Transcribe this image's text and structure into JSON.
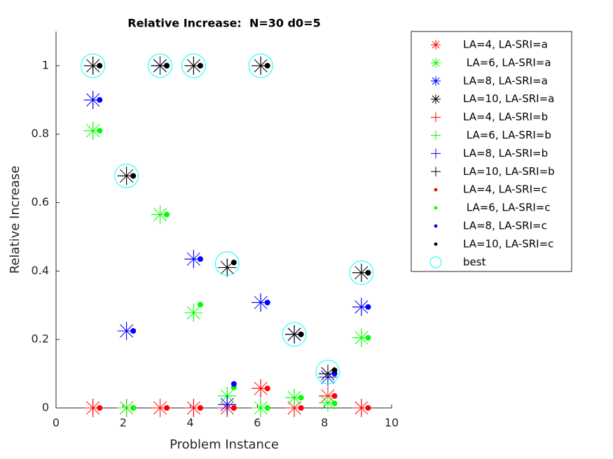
{
  "chart_data": {
    "type": "scatter",
    "title": "Relative Increase:  N=30 d0=5",
    "xlabel": "Problem Instance",
    "ylabel": "Relative Increase",
    "xlim": [
      0,
      10
    ],
    "ylim": [
      0,
      1.1
    ],
    "xticks": [
      0,
      2,
      4,
      6,
      8,
      10
    ],
    "yticks": [
      0,
      {
        "value": 0.2,
        "label": "0.2"
      },
      {
        "value": 0.4,
        "label": "0.4"
      },
      {
        "value": 0.6,
        "label": "0.6"
      },
      {
        "value": 0.8,
        "label": "0.8"
      },
      1
    ],
    "legend": "outside-right",
    "series": [
      {
        "name": "LA=4, LA-SRI=a",
        "color": "#ff0000",
        "marker": "*",
        "x": [
          1.1,
          2.1,
          3.1,
          4.1,
          5.1,
          6.1,
          7.1,
          8.1,
          9.1
        ],
        "values": [
          0,
          0,
          0,
          0,
          0,
          0.057,
          0,
          0.035,
          0
        ]
      },
      {
        "name": " LA=6, LA-SRI=a",
        "color": "#00ff00",
        "marker": "*",
        "x": [
          1.1,
          2.1,
          3.1,
          4.1,
          5.1,
          6.1,
          7.1,
          8.1,
          9.1
        ],
        "values": [
          0.81,
          0,
          0.565,
          0.278,
          0.035,
          0,
          0.03,
          0.015,
          0.205
        ]
      },
      {
        "name": "LA=8, LA-SRI=a",
        "color": "#0000ff",
        "marker": "*",
        "x": [
          1.1,
          2.1,
          3.1,
          4.1,
          5.1,
          6.1,
          7.1,
          8.1,
          9.1
        ],
        "values": [
          0.9,
          0.225,
          1,
          0.435,
          0.01,
          0.308,
          0.215,
          0.09,
          0.295
        ]
      },
      {
        "name": "LA=10, LA-SRI=a",
        "color": "#000000",
        "marker": "*",
        "x": [
          1.1,
          2.1,
          3.1,
          4.1,
          5.1,
          6.1,
          7.1,
          8.1,
          9.1
        ],
        "values": [
          1,
          0.678,
          1,
          1,
          0.41,
          1,
          0.215,
          0.1,
          0.395
        ]
      },
      {
        "name": "LA=4, LA-SRI=b",
        "color": "#ff0000",
        "marker": "+",
        "x": [
          1.1,
          2.1,
          3.1,
          4.1,
          5.1,
          6.1,
          7.1,
          8.1,
          9.1
        ],
        "values": [
          0,
          0,
          0,
          0,
          0,
          0.057,
          0,
          0.035,
          0
        ]
      },
      {
        "name": " LA=6, LA-SRI=b",
        "color": "#00ff00",
        "marker": "+",
        "x": [
          1.1,
          2.1,
          3.1,
          4.1,
          5.1,
          6.1,
          7.1,
          8.1,
          9.1
        ],
        "values": [
          0.81,
          0,
          0.565,
          0.278,
          0.035,
          0,
          0.03,
          0.015,
          0.205
        ]
      },
      {
        "name": "LA=8, LA-SRI=b",
        "color": "#0000ff",
        "marker": "+",
        "x": [
          1.1,
          2.1,
          3.1,
          4.1,
          5.1,
          6.1,
          7.1,
          8.1,
          9.1
        ],
        "values": [
          0.9,
          0.225,
          1,
          0.435,
          0.01,
          0.308,
          0.215,
          0.09,
          0.295
        ]
      },
      {
        "name": "LA=10, LA-SRI=b",
        "color": "#000000",
        "marker": "+",
        "x": [
          1.1,
          2.1,
          3.1,
          4.1,
          5.1,
          6.1,
          7.1,
          8.1,
          9.1
        ],
        "values": [
          1,
          0.678,
          1,
          1,
          0.41,
          1,
          0.215,
          0.1,
          0.395
        ]
      },
      {
        "name": "LA=4, LA-SRI=c",
        "color": "#ff0000",
        "marker": ".",
        "x": [
          1.3,
          2.3,
          3.3,
          4.3,
          5.3,
          6.3,
          7.3,
          8.3,
          9.3
        ],
        "values": [
          0,
          0,
          0,
          0,
          0,
          0.057,
          0,
          0.035,
          0
        ]
      },
      {
        "name": " LA=6, LA-SRI=c",
        "color": "#00ff00",
        "marker": ".",
        "x": [
          1.3,
          2.3,
          3.3,
          4.3,
          5.3,
          6.3,
          7.3,
          8.3,
          9.3
        ],
        "values": [
          0.81,
          0,
          0.565,
          0.302,
          0.06,
          0,
          0.03,
          0.013,
          0.205
        ]
      },
      {
        "name": "LA=8, LA-SRI=c",
        "color": "#0000ff",
        "marker": ".",
        "x": [
          1.3,
          2.3,
          3.3,
          4.3,
          5.3,
          6.3,
          7.3,
          8.3,
          9.3
        ],
        "values": [
          0.9,
          0.225,
          1,
          0.435,
          0.07,
          0.308,
          0.215,
          0.1,
          0.295
        ]
      },
      {
        "name": "LA=10, LA-SRI=c",
        "color": "#000000",
        "marker": ".",
        "x": [
          1.3,
          2.3,
          3.3,
          4.3,
          5.3,
          6.3,
          7.3,
          8.3,
          9.3
        ],
        "values": [
          1,
          0.678,
          1,
          1,
          0.425,
          1,
          0.215,
          0.11,
          0.395
        ]
      },
      {
        "name": "best",
        "color": "#00ffff",
        "marker": "o",
        "x": [
          1.1,
          2.1,
          3.1,
          4.1,
          5.1,
          6.1,
          7.1,
          8.1,
          9.1
        ],
        "values": [
          1,
          0.678,
          1,
          1,
          0.422,
          1,
          0.215,
          0.105,
          0.395
        ]
      }
    ]
  }
}
